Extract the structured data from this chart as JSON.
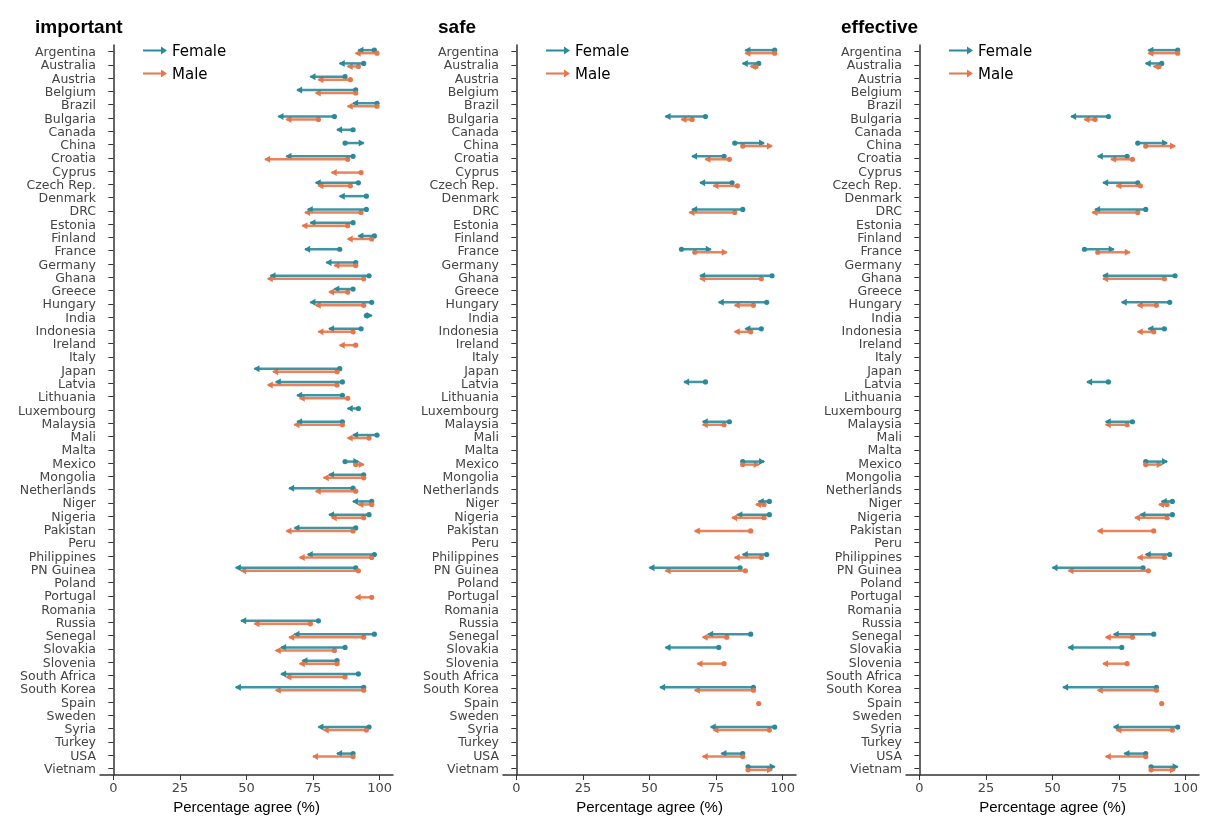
{
  "chart_data": [
    {
      "type": "bar",
      "title": "important",
      "xlabel": "Percentage agree (%)",
      "orientation": "horizontal",
      "legend": "top left",
      "grid": false,
      "categories": [
        "Argentina",
        "Australia",
        "Austria",
        "Belgium",
        "Brazil",
        "Bulgaria",
        "Canada",
        "China",
        "Croatia",
        "Cyprus",
        "Czech Rep.",
        "Denmark",
        "DRC",
        "Estonia",
        "Finland",
        "France",
        "Germany",
        "Ghana",
        "Greece",
        "Hungary",
        "India",
        "Indonesia",
        "Ireland",
        "Italy",
        "Japan",
        "Latvia",
        "Lithuania",
        "Luxembourg",
        "Malaysia",
        "Mali",
        "Malta",
        "Mexico",
        "Mongolia",
        "Netherlands",
        "Niger",
        "Nigeria",
        "Pakistan",
        "Peru",
        "Philippines",
        "PN Guinea",
        "Poland",
        "Portugal",
        "Romania",
        "Russia",
        "Senegal",
        "Slovakia",
        "Slovenia",
        "South Africa",
        "South Korea",
        "Spain",
        "Sweden",
        "Syria",
        "Turkey",
        "USA",
        "Vietnam"
      ],
      "xlim": [
        -5,
        105
      ],
      "xticks": [
        0,
        25,
        50,
        75,
        100
      ],
      "series": [
        {
          "name": "Female",
          "color": "#2a8a99",
          "base": [
            98,
            94,
            87,
            91,
            99,
            83,
            90,
            87,
            90,
            null,
            92,
            95,
            95,
            90,
            98,
            85,
            91,
            96,
            90,
            97,
            95,
            93,
            null,
            null,
            85,
            86,
            86,
            92,
            86,
            99,
            null,
            87,
            94,
            90,
            97,
            96,
            91,
            null,
            98,
            91,
            null,
            null,
            null,
            77,
            98,
            87,
            84,
            92,
            94,
            null,
            null,
            96,
            null,
            90,
            null
          ],
          "values": [
            -6,
            -9,
            -13,
            -22,
            -9,
            -21,
            -6,
            7,
            -25,
            null,
            -16,
            -10,
            -22,
            -16,
            -6,
            -13,
            -11,
            -37,
            -7,
            -23,
            2,
            -12,
            null,
            null,
            -32,
            -25,
            -17,
            -4,
            -17,
            -9,
            null,
            5,
            -13,
            -24,
            -7,
            -15,
            -23,
            null,
            -25,
            -45,
            null,
            null,
            null,
            -29,
            -30,
            -24,
            -13,
            -29,
            -48,
            null,
            null,
            -19,
            null,
            -6,
            null
          ]
        },
        {
          "name": "Male",
          "color": "#e8764a",
          "base": [
            99,
            92,
            89,
            91,
            99,
            77,
            null,
            null,
            88,
            93,
            89,
            null,
            93,
            88,
            97,
            null,
            91,
            94,
            88,
            94,
            null,
            90,
            91,
            null,
            84,
            84,
            88,
            null,
            86,
            96,
            null,
            91,
            94,
            91,
            97,
            94,
            90,
            null,
            97,
            92,
            null,
            97,
            null,
            74,
            94,
            83,
            84,
            87,
            94,
            null,
            null,
            95,
            null,
            90,
            null
          ],
          "values": [
            -8,
            -4,
            -12,
            -15,
            -11,
            -12,
            null,
            null,
            -31,
            -11,
            -12,
            null,
            -21,
            -17,
            -9,
            null,
            -8,
            -36,
            -7,
            -18,
            null,
            -13,
            -6,
            null,
            -24,
            -26,
            -18,
            null,
            -18,
            -8,
            null,
            3,
            -15,
            -15,
            -5,
            -12,
            -25,
            null,
            -27,
            -44,
            null,
            -6,
            null,
            -21,
            -28,
            -22,
            -14,
            -22,
            -33,
            null,
            null,
            -16,
            null,
            -15,
            null
          ]
        }
      ]
    },
    {
      "type": "bar",
      "title": "safe",
      "xlabel": "Percentage agree (%)",
      "orientation": "horizontal",
      "legend": "top left",
      "grid": false,
      "categories": [
        "Argentina",
        "Australia",
        "Austria",
        "Belgium",
        "Brazil",
        "Bulgaria",
        "Canada",
        "China",
        "Croatia",
        "Cyprus",
        "Czech Rep.",
        "Denmark",
        "DRC",
        "Estonia",
        "Finland",
        "France",
        "Germany",
        "Ghana",
        "Greece",
        "Hungary",
        "India",
        "Indonesia",
        "Ireland",
        "Italy",
        "Japan",
        "Latvia",
        "Lithuania",
        "Luxembourg",
        "Malaysia",
        "Mali",
        "Malta",
        "Mexico",
        "Mongolia",
        "Netherlands",
        "Niger",
        "Nigeria",
        "Pakistan",
        "Peru",
        "Philippines",
        "PN Guinea",
        "Poland",
        "Portugal",
        "Romania",
        "Russia",
        "Senegal",
        "Slovakia",
        "Slovenia",
        "South Africa",
        "South Korea",
        "Spain",
        "Sweden",
        "Syria",
        "Turkey",
        "USA",
        "Vietnam"
      ],
      "xlim": [
        -5,
        105
      ],
      "xticks": [
        0,
        25,
        50,
        75,
        100
      ],
      "series": [
        {
          "name": "Female",
          "color": "#2a8a99",
          "base": [
            97,
            91,
            null,
            null,
            null,
            71,
            null,
            82,
            78,
            null,
            81,
            null,
            85,
            null,
            null,
            62,
            null,
            96,
            null,
            94,
            null,
            92,
            null,
            null,
            null,
            71,
            null,
            null,
            80,
            null,
            null,
            85,
            null,
            null,
            95,
            95,
            null,
            null,
            94,
            84,
            null,
            null,
            null,
            null,
            88,
            76,
            null,
            null,
            89,
            null,
            null,
            97,
            null,
            85,
            87
          ],
          "values": [
            -11,
            -6,
            null,
            null,
            null,
            -15,
            null,
            11,
            -12,
            null,
            -12,
            null,
            -19,
            null,
            null,
            11,
            null,
            -27,
            null,
            -18,
            null,
            -6,
            null,
            null,
            null,
            -8,
            null,
            null,
            -10,
            null,
            null,
            8,
            null,
            null,
            -4,
            -12,
            null,
            null,
            -9,
            -34,
            null,
            null,
            null,
            null,
            -16,
            -20,
            null,
            null,
            -35,
            null,
            null,
            -24,
            null,
            -8,
            10
          ]
        },
        {
          "name": "Male",
          "color": "#e8764a",
          "base": [
            97,
            90,
            null,
            null,
            null,
            66,
            null,
            85,
            80,
            null,
            83,
            null,
            82,
            null,
            null,
            67,
            null,
            92,
            null,
            89,
            null,
            88,
            null,
            null,
            null,
            null,
            null,
            null,
            78,
            null,
            null,
            85,
            null,
            null,
            93,
            93,
            88,
            null,
            92,
            86,
            null,
            null,
            null,
            null,
            79,
            null,
            78,
            null,
            89,
            91,
            null,
            95,
            null,
            85,
            87
          ],
          "values": [
            -11,
            -2,
            null,
            null,
            null,
            -4,
            null,
            11,
            -9,
            null,
            -9,
            null,
            -17,
            null,
            null,
            12,
            null,
            -23,
            null,
            -7,
            null,
            -6,
            null,
            null,
            null,
            null,
            null,
            null,
            -8,
            null,
            null,
            6,
            null,
            null,
            -3,
            -12,
            -21,
            null,
            -10,
            -30,
            null,
            null,
            null,
            null,
            -9,
            null,
            -10,
            null,
            -22,
            0,
            null,
            -21,
            null,
            -15,
            9
          ]
        }
      ]
    },
    {
      "type": "bar",
      "title": "effective",
      "xlabel": "Percentage agree (%)",
      "orientation": "horizontal",
      "legend": "top left",
      "grid": false,
      "categories": [
        "Argentina",
        "Australia",
        "Austria",
        "Belgium",
        "Brazil",
        "Bulgaria",
        "Canada",
        "China",
        "Croatia",
        "Cyprus",
        "Czech Rep.",
        "Denmark",
        "DRC",
        "Estonia",
        "Finland",
        "France",
        "Germany",
        "Ghana",
        "Greece",
        "Hungary",
        "India",
        "Indonesia",
        "Ireland",
        "Italy",
        "Japan",
        "Latvia",
        "Lithuania",
        "Luxembourg",
        "Malaysia",
        "Mali",
        "Malta",
        "Mexico",
        "Mongolia",
        "Netherlands",
        "Niger",
        "Nigeria",
        "Pakistan",
        "Peru",
        "Philippines",
        "PN Guinea",
        "Poland",
        "Portugal",
        "Romania",
        "Russia",
        "Senegal",
        "Slovakia",
        "Slovenia",
        "South Africa",
        "South Korea",
        "Spain",
        "Sweden",
        "Syria",
        "Turkey",
        "USA",
        "Vietnam"
      ],
      "xlim": [
        -5,
        105
      ],
      "xticks": [
        0,
        25,
        50,
        75,
        100
      ],
      "series": [
        {
          "name": "Female",
          "color": "#2a8a99",
          "base": [
            97,
            91,
            null,
            null,
            null,
            71,
            null,
            82,
            78,
            null,
            82,
            null,
            85,
            null,
            null,
            62,
            null,
            96,
            null,
            94,
            null,
            92,
            null,
            null,
            null,
            71,
            null,
            null,
            80,
            null,
            null,
            85,
            null,
            null,
            95,
            95,
            null,
            null,
            94,
            84,
            null,
            null,
            null,
            null,
            88,
            76,
            null,
            null,
            89,
            null,
            null,
            97,
            null,
            85,
            87
          ],
          "values": [
            -11,
            -6,
            null,
            null,
            null,
            -14,
            null,
            11,
            -11,
            null,
            -13,
            null,
            -19,
            null,
            null,
            11,
            null,
            -27,
            null,
            -18,
            null,
            -6,
            null,
            null,
            null,
            -8,
            null,
            null,
            -10,
            null,
            null,
            8,
            null,
            null,
            -4,
            -12,
            null,
            null,
            -9,
            -34,
            null,
            null,
            null,
            null,
            -15,
            -20,
            null,
            null,
            -35,
            null,
            null,
            -24,
            null,
            -8,
            10
          ]
        },
        {
          "name": "Male",
          "color": "#e8764a",
          "base": [
            97,
            90,
            null,
            null,
            null,
            66,
            null,
            85,
            80,
            null,
            83,
            null,
            82,
            null,
            null,
            67,
            null,
            92,
            null,
            89,
            null,
            88,
            null,
            null,
            null,
            null,
            null,
            null,
            78,
            null,
            null,
            85,
            null,
            null,
            93,
            93,
            88,
            null,
            92,
            86,
            null,
            null,
            null,
            null,
            80,
            null,
            78,
            null,
            89,
            91,
            null,
            95,
            null,
            85,
            87
          ],
          "values": [
            -11,
            -2,
            null,
            null,
            null,
            -4,
            null,
            11,
            -8,
            null,
            -9,
            null,
            -17,
            null,
            null,
            12,
            null,
            -23,
            null,
            -7,
            null,
            -6,
            null,
            null,
            null,
            null,
            null,
            null,
            -8,
            null,
            null,
            6,
            null,
            null,
            -3,
            -12,
            -21,
            null,
            -10,
            -30,
            null,
            null,
            null,
            null,
            -10,
            null,
            -9,
            null,
            -22,
            0,
            null,
            -21,
            null,
            -15,
            9
          ]
        }
      ]
    }
  ]
}
